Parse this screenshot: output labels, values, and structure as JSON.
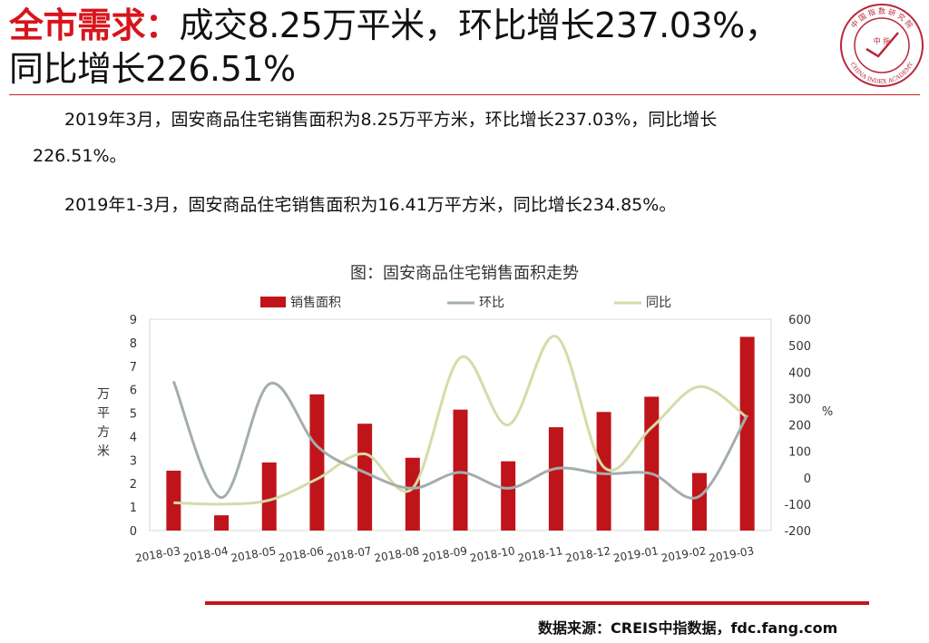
{
  "header": {
    "title_red": "全市需求：",
    "title_rest_1": "成交8.25万平米，环比增长237.03%，",
    "title_line_2": "同比增长226.51%",
    "logo_top_text": "中 国 指 数 研 究 院",
    "logo_center_text": "中 指",
    "logo_bottom_text": "CHINA INDEX ACADEMY"
  },
  "body": {
    "para1_line1": "2019年3月，固安商品住宅销售面积为8.25万平方米，环比增长237.03%，同比增长",
    "para1_line2": "226.51%。",
    "para2": "2019年1-3月，固安商品住宅销售面积为16.41万平方米，同比增长234.85%。"
  },
  "chart_title": "图：固安商品住宅销售面积走势",
  "chart_data": {
    "type": "bar",
    "categories": [
      "2018-03",
      "2018-04",
      "2018-05",
      "2018-06",
      "2018-07",
      "2018-08",
      "2018-09",
      "2018-10",
      "2018-11",
      "2018-12",
      "2019-01",
      "2019-02",
      "2019-03"
    ],
    "series": [
      {
        "name": "销售面积",
        "type": "bar",
        "axis": "left",
        "color": "#c0141b",
        "values": [
          2.55,
          0.65,
          2.9,
          5.8,
          4.55,
          3.1,
          5.15,
          2.95,
          4.4,
          5.05,
          5.7,
          2.45,
          8.25
        ]
      },
      {
        "name": "环比",
        "type": "line",
        "axis": "right",
        "color": "#a3aeab",
        "values": [
          365,
          -75,
          355,
          120,
          20,
          -40,
          20,
          -40,
          35,
          15,
          15,
          -70,
          237
        ]
      },
      {
        "name": "同比",
        "type": "line",
        "axis": "right",
        "color": "#d6dba8",
        "values": [
          -95,
          -100,
          -85,
          -5,
          90,
          -40,
          455,
          200,
          535,
          40,
          190,
          345,
          227
        ]
      }
    ],
    "ylabel_left": "万平方米",
    "ylabel_right": "%",
    "ylim_left": [
      0,
      9
    ],
    "ylim_right": [
      -200,
      600
    ],
    "yticks_left": [
      0,
      1,
      2,
      3,
      4,
      5,
      6,
      7,
      8,
      9
    ],
    "yticks_right": [
      -200,
      -100,
      0,
      100,
      200,
      300,
      400,
      500,
      600
    ],
    "legend_position": "top",
    "grid": false
  },
  "footer": {
    "source": "数据来源：CREIS中指数据，fdc.fang.com"
  }
}
